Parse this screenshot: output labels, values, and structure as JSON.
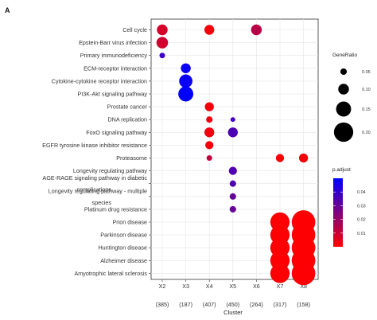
{
  "panel_label": "A",
  "chart_data": {
    "type": "scatter",
    "title": "",
    "xlabel": "Cluster",
    "ylabel": "",
    "x_categories": [
      "X2",
      "X3",
      "X4",
      "X5",
      "X6",
      "X7",
      "X8"
    ],
    "x_counts": [
      "(385)",
      "(187)",
      "(407)",
      "(450)",
      "(264)",
      "(317)",
      "(158)"
    ],
    "y_categories": [
      "Cell cycle",
      "Epstein-Barr virus infection",
      "Primary immunodeficiency",
      "ECM-receptor interaction",
      "Cytokine-cytokine receptor interaction",
      "PI3K-Akt signaling pathway",
      "Prostate cancer",
      "DNA replication",
      "FoxO signaling pathway",
      "EGFR tyrosine kinase inhibitor resistance",
      "Proteasome",
      "Longevity regulating pathway",
      "AGE-RAGE signaling pathway in diabetic complications",
      "Longevity regulating pathway - multiple species",
      "Platinum drug resistance",
      "Prion disease",
      "Parkinson disease",
      "Huntington disease",
      "Alzheimer disease",
      "Amyotrophic lateral sclerosis"
    ],
    "points": [
      {
        "x": "X2",
        "y": "Cell cycle",
        "gene_ratio": 0.1,
        "p_adjust": 0.008
      },
      {
        "x": "X4",
        "y": "Cell cycle",
        "gene_ratio": 0.09,
        "p_adjust": 0.002
      },
      {
        "x": "X6",
        "y": "Cell cycle",
        "gene_ratio": 0.1,
        "p_adjust": 0.014
      },
      {
        "x": "X2",
        "y": "Epstein-Barr virus infection",
        "gene_ratio": 0.11,
        "p_adjust": 0.009
      },
      {
        "x": "X2",
        "y": "Primary immunodeficiency",
        "gene_ratio": 0.04,
        "p_adjust": 0.038
      },
      {
        "x": "X3",
        "y": "ECM-receptor interaction",
        "gene_ratio": 0.09,
        "p_adjust": 0.048
      },
      {
        "x": "X3",
        "y": "Cytokine-cytokine receptor interaction",
        "gene_ratio": 0.13,
        "p_adjust": 0.048
      },
      {
        "x": "X3",
        "y": "PI3K-Akt signaling pathway",
        "gene_ratio": 0.15,
        "p_adjust": 0.05
      },
      {
        "x": "X4",
        "y": "Prostate cancer",
        "gene_ratio": 0.08,
        "p_adjust": 0.002
      },
      {
        "x": "X4",
        "y": "DNA replication",
        "gene_ratio": 0.05,
        "p_adjust": 0.003
      },
      {
        "x": "X5",
        "y": "DNA replication",
        "gene_ratio": 0.03,
        "p_adjust": 0.037
      },
      {
        "x": "X4",
        "y": "FoxO signaling pathway",
        "gene_ratio": 0.09,
        "p_adjust": 0.003
      },
      {
        "x": "X5",
        "y": "FoxO signaling pathway",
        "gene_ratio": 0.09,
        "p_adjust": 0.035
      },
      {
        "x": "X4",
        "y": "EGFR tyrosine kinase inhibitor resistance",
        "gene_ratio": 0.07,
        "p_adjust": 0.002
      },
      {
        "x": "X4",
        "y": "Proteasome",
        "gene_ratio": 0.04,
        "p_adjust": 0.012
      },
      {
        "x": "X7",
        "y": "Proteasome",
        "gene_ratio": 0.07,
        "p_adjust": 0.001
      },
      {
        "x": "X8",
        "y": "Proteasome",
        "gene_ratio": 0.08,
        "p_adjust": 0.002
      },
      {
        "x": "X5",
        "y": "Longevity regulating pathway",
        "gene_ratio": 0.07,
        "p_adjust": 0.034
      },
      {
        "x": "X5",
        "y": "AGE-RAGE signaling pathway in diabetic complications",
        "gene_ratio": 0.05,
        "p_adjust": 0.035
      },
      {
        "x": "X5",
        "y": "Longevity regulating pathway - multiple species",
        "gene_ratio": 0.05,
        "p_adjust": 0.03
      },
      {
        "x": "X5",
        "y": "Platinum drug resistance",
        "gene_ratio": 0.05,
        "p_adjust": 0.03
      },
      {
        "x": "X7",
        "y": "Prion disease",
        "gene_ratio": 0.2,
        "p_adjust": 0.0005
      },
      {
        "x": "X8",
        "y": "Prion disease",
        "gene_ratio": 0.25,
        "p_adjust": 0.0005
      },
      {
        "x": "X7",
        "y": "Parkinson disease",
        "gene_ratio": 0.2,
        "p_adjust": 0.0005
      },
      {
        "x": "X8",
        "y": "Parkinson disease",
        "gene_ratio": 0.25,
        "p_adjust": 0.0005
      },
      {
        "x": "X7",
        "y": "Huntington disease",
        "gene_ratio": 0.2,
        "p_adjust": 0.0005
      },
      {
        "x": "X8",
        "y": "Huntington disease",
        "gene_ratio": 0.25,
        "p_adjust": 0.0005
      },
      {
        "x": "X7",
        "y": "Alzheimer disease",
        "gene_ratio": 0.2,
        "p_adjust": 0.0005
      },
      {
        "x": "X8",
        "y": "Alzheimer disease",
        "gene_ratio": 0.25,
        "p_adjust": 0.0005
      },
      {
        "x": "X7",
        "y": "Amyotrophic lateral sclerosis",
        "gene_ratio": 0.2,
        "p_adjust": 0.0005
      },
      {
        "x": "X8",
        "y": "Amyotrophic lateral sclerosis",
        "gene_ratio": 0.25,
        "p_adjust": 0.0005
      }
    ],
    "size_legend": {
      "title": "GeneRatio",
      "values": [
        0.05,
        0.1,
        0.15,
        0.2
      ],
      "labels": [
        "0.05",
        "0.10",
        "0.15",
        "0.20"
      ]
    },
    "color_legend": {
      "title": "p.adjust",
      "ticks": [
        0.04,
        0.03,
        0.02,
        0.01
      ],
      "labels": [
        "0.04",
        "0.03",
        "0.02",
        "0.01"
      ],
      "range": [
        0,
        0.05
      ],
      "low_color": "#ff0000",
      "high_color": "#0000ff"
    },
    "grid": true,
    "legend_position": "right",
    "panel_background": "#ffffff",
    "grid_color": "#e6e6e6"
  }
}
